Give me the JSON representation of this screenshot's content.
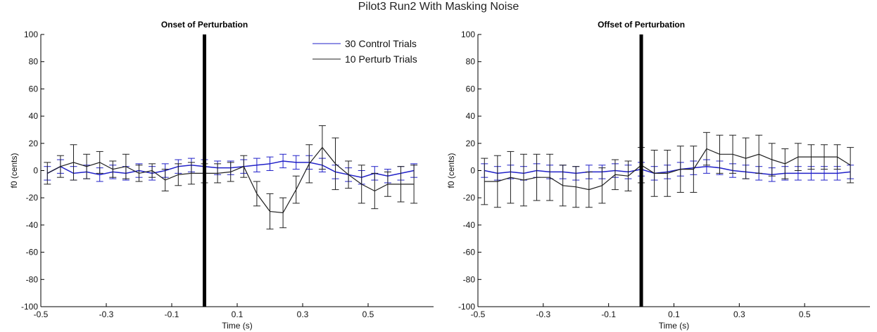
{
  "figure_title": "Pilot3 Run2 With Masking Noise",
  "colors": {
    "control": "#2020c8",
    "perturb": "#202020",
    "axis": "#000000",
    "marker": "#000000"
  },
  "chart_data": [
    {
      "type": "line",
      "title": "Onset of Perturbation",
      "xlabel": "Time (s)",
      "ylabel": "f0 (cents)",
      "xlim": [
        -0.5,
        0.7
      ],
      "ylim": [
        -100,
        100
      ],
      "xticks": [
        -0.5,
        -0.3,
        -0.1,
        0.1,
        0.3,
        0.5
      ],
      "xtick_labels": [
        "-0.5",
        "-0.3",
        "-0.1",
        "0.1",
        "0.3",
        "0.5"
      ],
      "yticks": [
        100,
        80,
        60,
        40,
        20,
        0,
        -20,
        -40,
        -60,
        -80,
        -100
      ],
      "ytick_labels": [
        "100",
        "80",
        "60",
        "40",
        "20",
        "0",
        "-20",
        "-40",
        "-60",
        "-80",
        "-100"
      ],
      "marker_x": 0.0,
      "legend": {
        "position": "top-right",
        "entries": [
          "30 Control Trials",
          "10 Perturb Trials"
        ]
      },
      "series": [
        {
          "name": "30 Control Trials",
          "color": "#2020c8",
          "x": [
            -0.48,
            -0.44,
            -0.4,
            -0.36,
            -0.32,
            -0.28,
            -0.24,
            -0.2,
            -0.16,
            -0.12,
            -0.08,
            -0.04,
            0.0,
            0.04,
            0.08,
            0.12,
            0.16,
            0.2,
            0.24,
            0.28,
            0.32,
            0.36,
            0.4,
            0.44,
            0.48,
            0.52,
            0.56,
            0.6,
            0.64
          ],
          "y": [
            -2,
            3,
            -2,
            -1,
            -3,
            -1,
            -2,
            0,
            -2,
            0,
            3,
            4,
            3,
            2,
            2,
            3,
            4,
            5,
            7,
            6,
            6,
            4,
            -1,
            -3,
            -5,
            -2,
            -4,
            -2,
            0
          ],
          "err": [
            5,
            5,
            5,
            5,
            5,
            5,
            5,
            5,
            5,
            5,
            5,
            5,
            5,
            5,
            5,
            5,
            5,
            5,
            5,
            5,
            5,
            5,
            5,
            5,
            5,
            5,
            5,
            5,
            5
          ]
        },
        {
          "name": "10 Perturb Trials",
          "color": "#202020",
          "x": [
            -0.48,
            -0.44,
            -0.4,
            -0.36,
            -0.32,
            -0.28,
            -0.24,
            -0.2,
            -0.16,
            -0.12,
            -0.08,
            -0.04,
            0.0,
            0.04,
            0.08,
            0.12,
            0.16,
            0.2,
            0.24,
            0.28,
            0.32,
            0.36,
            0.4,
            0.44,
            0.48,
            0.52,
            0.56,
            0.6,
            0.64
          ],
          "y": [
            -2,
            3,
            6,
            3,
            6,
            1,
            3,
            -2,
            0,
            -7,
            -3,
            -2,
            -2,
            -2,
            -1,
            3,
            -17,
            -30,
            -31,
            -14,
            5,
            17,
            5,
            -3,
            -10,
            -15,
            -10,
            -10,
            -10
          ],
          "err": [
            8,
            8,
            13,
            9,
            8,
            6,
            9,
            6,
            5,
            8,
            8,
            8,
            7,
            7,
            7,
            8,
            9,
            13,
            11,
            10,
            14,
            16,
            19,
            10,
            14,
            13,
            9,
            13,
            14
          ]
        }
      ]
    },
    {
      "type": "line",
      "title": "Offset of Perturbation",
      "xlabel": "Time (s)",
      "ylabel": "f0 (cents)",
      "xlim": [
        -0.5,
        0.7
      ],
      "ylim": [
        -100,
        100
      ],
      "xticks": [
        -0.5,
        -0.3,
        -0.1,
        0.1,
        0.3,
        0.5
      ],
      "xtick_labels": [
        "-0.5",
        "-0.3",
        "-0.1",
        "0.1",
        "0.3",
        "0.5"
      ],
      "yticks": [
        100,
        80,
        60,
        40,
        20,
        0,
        -20,
        -40,
        -60,
        -80,
        -100
      ],
      "ytick_labels": [
        "100",
        "80",
        "60",
        "40",
        "20",
        "0",
        "-20",
        "-40",
        "-60",
        "-80",
        "-100"
      ],
      "marker_x": 0.0,
      "series": [
        {
          "name": "30 Control Trials",
          "color": "#2020c8",
          "x": [
            -0.48,
            -0.44,
            -0.4,
            -0.36,
            -0.32,
            -0.28,
            -0.24,
            -0.2,
            -0.16,
            -0.12,
            -0.08,
            -0.04,
            0.0,
            0.04,
            0.08,
            0.12,
            0.16,
            0.2,
            0.24,
            0.28,
            0.32,
            0.36,
            0.4,
            0.44,
            0.48,
            0.52,
            0.56,
            0.6,
            0.64
          ],
          "y": [
            0,
            -2,
            -1,
            -2,
            0,
            -1,
            -1,
            -2,
            -1,
            -1,
            0,
            -1,
            1,
            -2,
            -1,
            1,
            2,
            3,
            2,
            0,
            -1,
            -2,
            -3,
            -2,
            -2,
            -2,
            -2,
            -2,
            -1
          ],
          "err": [
            5,
            5,
            5,
            5,
            5,
            5,
            5,
            5,
            5,
            5,
            5,
            5,
            5,
            5,
            5,
            5,
            5,
            5,
            5,
            5,
            5,
            5,
            5,
            5,
            5,
            5,
            5,
            5,
            5
          ]
        },
        {
          "name": "10 Perturb Trials",
          "color": "#202020",
          "x": [
            -0.48,
            -0.44,
            -0.4,
            -0.36,
            -0.32,
            -0.28,
            -0.24,
            -0.2,
            -0.16,
            -0.12,
            -0.08,
            -0.04,
            0.0,
            0.04,
            0.08,
            0.12,
            0.16,
            0.2,
            0.24,
            0.28,
            0.32,
            0.36,
            0.4,
            0.44,
            0.48,
            0.52,
            0.56,
            0.6,
            0.64
          ],
          "y": [
            -8,
            -8,
            -5,
            -7,
            -5,
            -5,
            -11,
            -12,
            -14,
            -11,
            -3,
            -4,
            4,
            -2,
            -2,
            1,
            1,
            16,
            12,
            12,
            9,
            12,
            8,
            5,
            10,
            10,
            10,
            10,
            4
          ],
          "err": [
            17,
            19,
            19,
            19,
            17,
            17,
            15,
            15,
            13,
            13,
            11,
            11,
            13,
            17,
            17,
            17,
            17,
            12,
            14,
            14,
            15,
            14,
            12,
            11,
            10,
            9,
            9,
            9,
            13
          ]
        }
      ]
    }
  ]
}
